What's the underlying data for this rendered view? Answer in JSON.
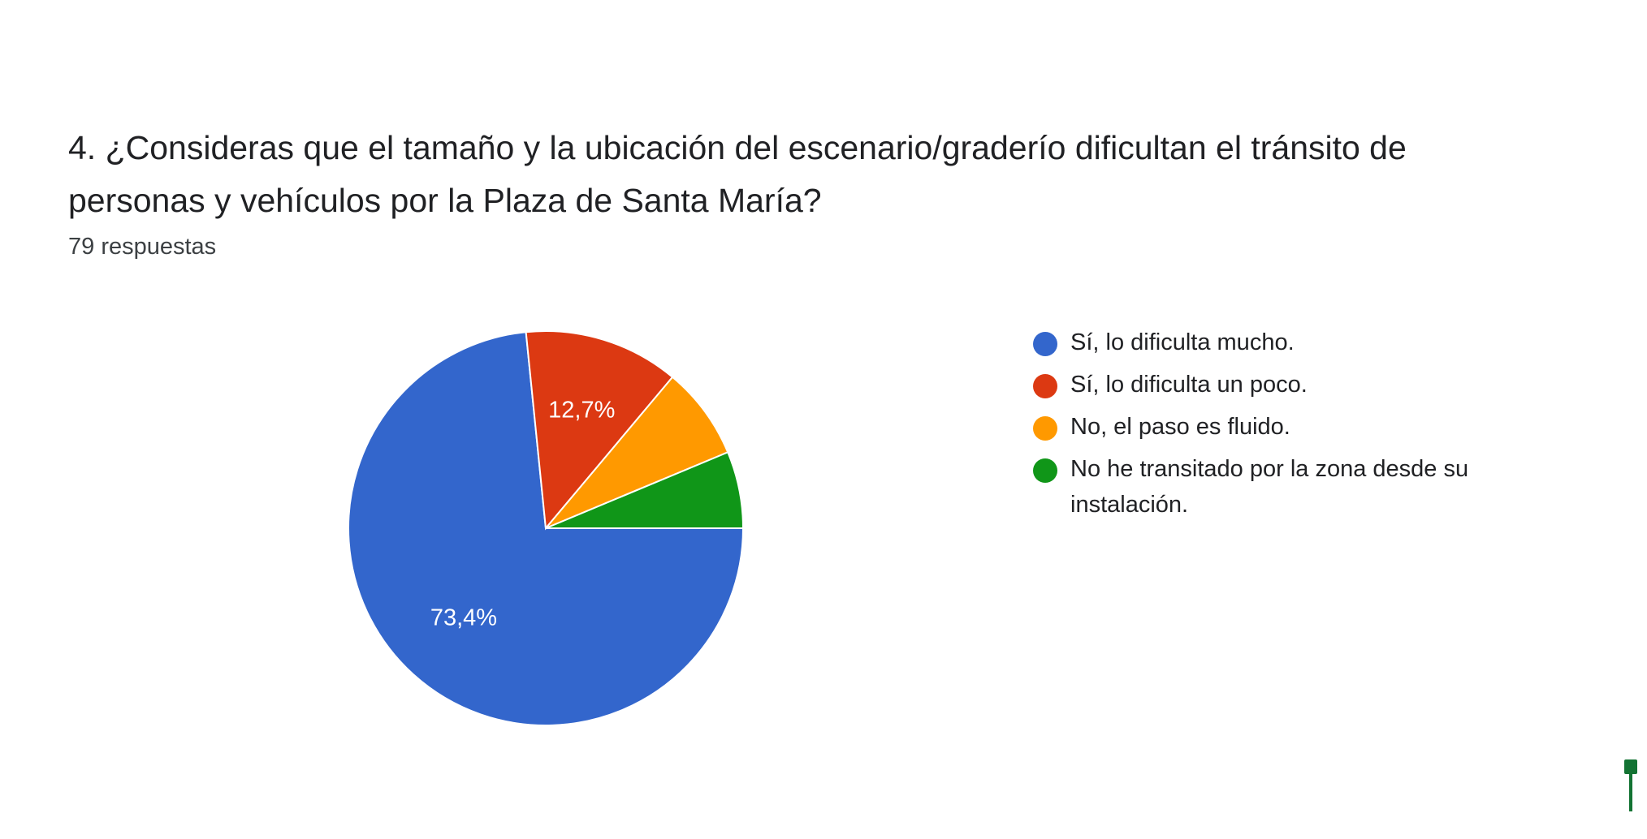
{
  "header": {
    "title": "4. ¿Consideras que el tamaño y la ubicación del escenario/graderío dificultan el tránsito de personas y vehículos por la Plaza de Santa María?",
    "responses": "79 respuestas"
  },
  "chart_data": {
    "type": "pie",
    "title": "4. ¿Consideras que el tamaño y la ubicación del escenario/graderío dificultan el tránsito de personas y vehículos por la Plaza de Santa María?",
    "total_responses": 79,
    "categories": [
      "Sí, lo dificulta mucho.",
      "Sí, lo dificulta un poco.",
      "No, el paso es fluido.",
      "No he transitado por la zona desde su instalación."
    ],
    "values": [
      73.4,
      12.7,
      7.6,
      6.3
    ],
    "slice_labels": [
      "73,4%",
      "12,7%",
      "",
      ""
    ],
    "colors": [
      "#3366cc",
      "#dc3912",
      "#ff9900",
      "#109618"
    ],
    "legend_position": "right",
    "start_angle": "clockwise from 3 o'clock"
  },
  "colors": {
    "accent_marker": "#137333"
  }
}
